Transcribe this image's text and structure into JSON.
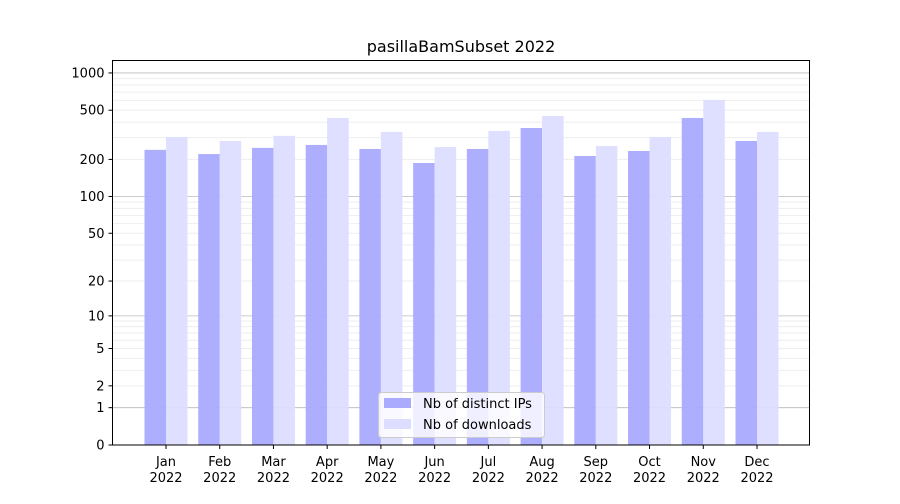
{
  "chart_data": {
    "type": "bar",
    "title": "pasillaBamSubset 2022",
    "xlabel": "",
    "ylabel": "",
    "yscale": "log10(y+1)",
    "ylim": [
      0,
      1200
    ],
    "yticks": [
      0,
      1,
      2,
      5,
      10,
      20,
      50,
      100,
      200,
      500,
      1000
    ],
    "grid": true,
    "legend_position": "lower-center",
    "categories": [
      "Jan\n2022",
      "Feb\n2022",
      "Mar\n2022",
      "Apr\n2022",
      "May\n2022",
      "Jun\n2022",
      "Jul\n2022",
      "Aug\n2022",
      "Sep\n2022",
      "Oct\n2022",
      "Nov\n2022",
      "Dec\n2022"
    ],
    "series": [
      {
        "name": "Nb of distinct IPs",
        "color": "#aaaaff",
        "values": [
          239,
          221,
          248,
          262,
          243,
          187,
          243,
          359,
          213,
          234,
          433,
          282
        ]
      },
      {
        "name": "Nb of downloads",
        "color": "#ddddff",
        "values": [
          304,
          282,
          310,
          433,
          334,
          252,
          340,
          449,
          257,
          304,
          605,
          334
        ]
      }
    ]
  }
}
